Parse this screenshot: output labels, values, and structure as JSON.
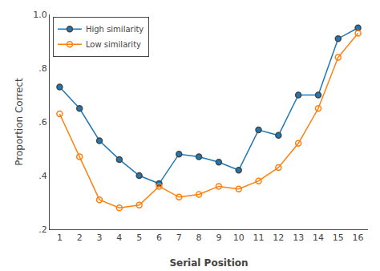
{
  "chart_data": {
    "type": "line",
    "x": [
      1,
      2,
      3,
      4,
      5,
      6,
      7,
      8,
      9,
      10,
      11,
      12,
      13,
      14,
      15,
      16
    ],
    "series": [
      {
        "name": "High similarity",
        "marker": "circle",
        "values": [
          0.73,
          0.65,
          0.53,
          0.46,
          0.4,
          0.37,
          0.48,
          0.47,
          0.45,
          0.42,
          0.57,
          0.55,
          0.7,
          0.7,
          0.91,
          0.95
        ]
      },
      {
        "name": "Low similarity",
        "marker": "circle-open",
        "values": [
          0.63,
          0.47,
          0.31,
          0.28,
          0.29,
          0.36,
          0.32,
          0.33,
          0.36,
          0.35,
          0.38,
          0.43,
          0.52,
          0.65,
          0.84,
          0.93
        ]
      }
    ],
    "xlabel": "Serial Position",
    "ylabel": "Proportion Correct",
    "xlim": [
      0.5,
      16.5
    ],
    "xticks": [
      1,
      2,
      3,
      4,
      5,
      6,
      7,
      8,
      9,
      10,
      11,
      12,
      13,
      14,
      15,
      16
    ],
    "ylim": [
      0.2,
      1.0
    ],
    "yticks": [
      {
        "value": 0.2,
        "label": ".2"
      },
      {
        "value": 0.4,
        "label": ".4"
      },
      {
        "value": 0.6,
        "label": ".6"
      },
      {
        "value": 0.8,
        "label": ".8"
      },
      {
        "value": 1.0,
        "label": "1.0"
      }
    ],
    "legend": "upper left",
    "grid": false
  }
}
